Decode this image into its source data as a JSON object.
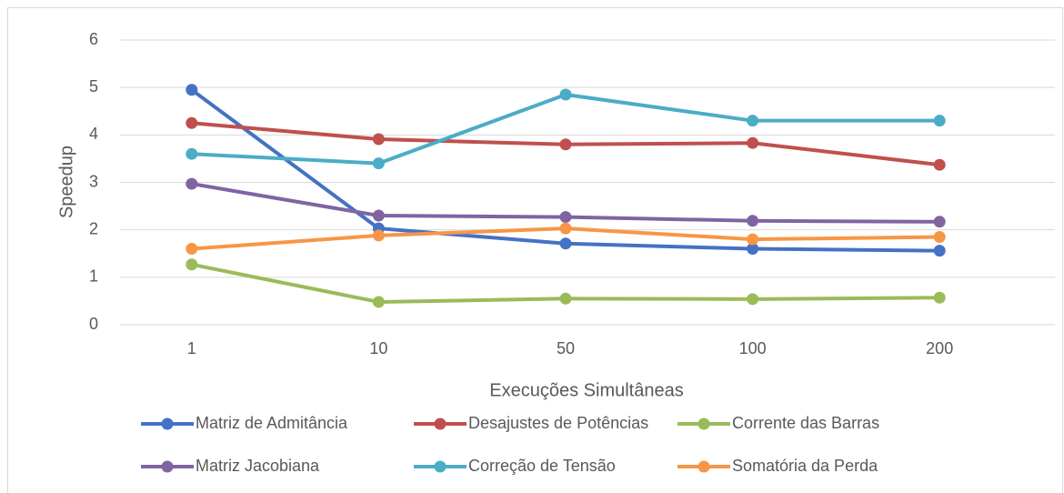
{
  "chart_data": {
    "type": "line",
    "x_label": "Execuções Simultâneas",
    "y_label": "Speedup",
    "categories": [
      "1",
      "10",
      "50",
      "100",
      "200"
    ],
    "series": [
      {
        "name": "Matriz de Admitância",
        "color": "#4472c4",
        "values": [
          4.95,
          2.03,
          1.71,
          1.6,
          1.56
        ]
      },
      {
        "name": "Desajustes de Potências",
        "color": "#c0504d",
        "values": [
          4.25,
          3.91,
          3.8,
          3.83,
          3.37
        ]
      },
      {
        "name": "Corrente das Barras",
        "color": "#9bbb59",
        "values": [
          1.27,
          0.48,
          0.55,
          0.54,
          0.57
        ]
      },
      {
        "name": "Matriz Jacobiana",
        "color": "#8064a2",
        "values": [
          2.97,
          2.3,
          2.27,
          2.19,
          2.17
        ]
      },
      {
        "name": "Correção de Tensão",
        "color": "#4bacc6",
        "values": [
          3.6,
          3.4,
          4.85,
          4.3,
          4.3
        ]
      },
      {
        "name": "Somatória da Perda",
        "color": "#f79646",
        "values": [
          1.6,
          1.88,
          2.03,
          1.8,
          1.85
        ]
      }
    ],
    "ylim": [
      0,
      6
    ],
    "yticks": [
      0,
      1,
      2,
      3,
      4,
      5,
      6
    ],
    "grid": true,
    "legend": "bottom"
  }
}
